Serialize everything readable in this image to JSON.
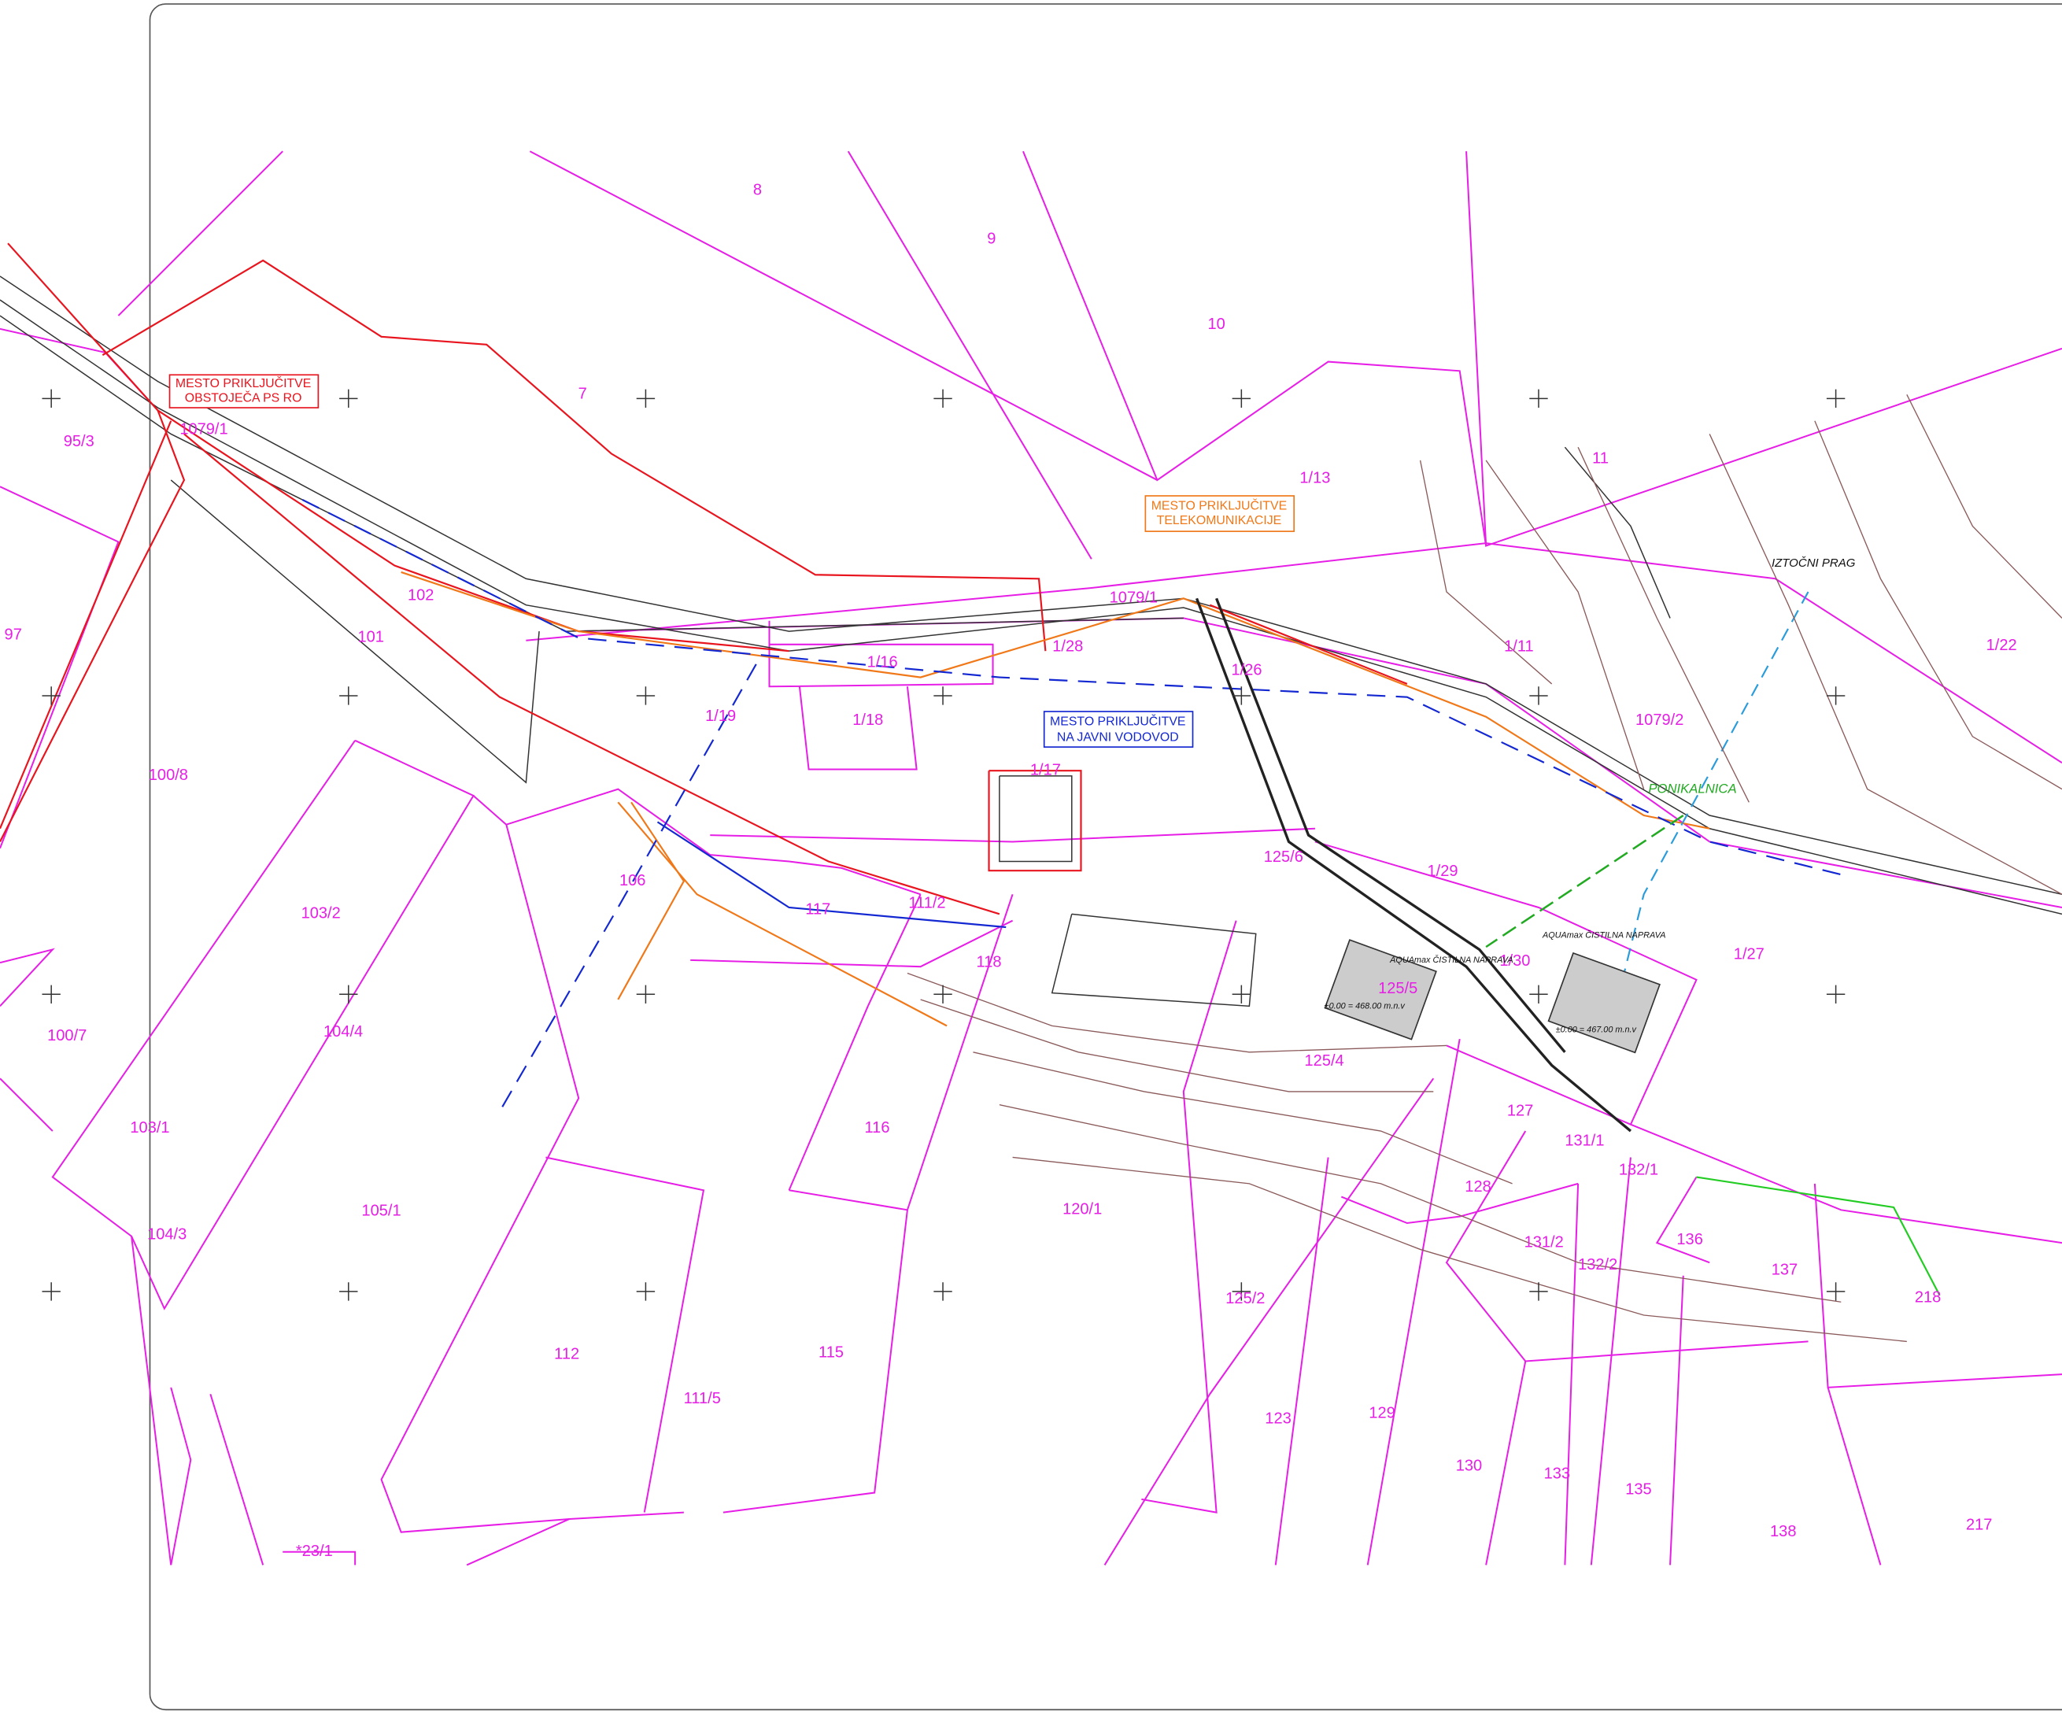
{
  "parcels": [
    "8",
    "9",
    "10",
    "7",
    "1/13",
    "11",
    "95/3",
    "1079/1",
    "97",
    "102",
    "101",
    "1079/1",
    "1/28",
    "1/16",
    "1/26",
    "1/11",
    "1/22",
    "1/19",
    "1/18",
    "1079/2",
    "100/8",
    "1/17",
    "106",
    "1/29",
    "125/6",
    "117",
    "111/2",
    "103/2",
    "118",
    "1/30",
    "125/5",
    "1/27",
    "100/7",
    "104/4",
    "125/4",
    "127",
    "116",
    "103/1",
    "131/1",
    "132/1",
    "128",
    "105/1",
    "120/1",
    "104/3",
    "136",
    "131/2",
    "132/2",
    "137",
    "218",
    "125/2",
    "112",
    "115",
    "111/5",
    "123",
    "129",
    "130",
    "133",
    "135",
    "138",
    "217",
    "*23/1"
  ],
  "annotations": {
    "sewer_connection": [
      "MESTO PRIKLJUČITVE",
      "OBSTOJEČA PS RO"
    ],
    "telecom_connection": [
      "MESTO PRIKLJUČITVE",
      "TELEKOMUNIKACIJE"
    ],
    "water_connection": [
      "MESTO PRIKLJUČITVE",
      "NA JAVNI VODOVOD"
    ],
    "sinkhole": "PONIKALNICA",
    "outlet_sill": "IZTOČNI PRAG",
    "treatment_plant_1": "AQUAmax ČISTILNA NAPRAVA",
    "treatment_plant_2": "AQUAmax ČISTILNA NAPRAVA",
    "level_1": "±0.00 = 468.00 m.n.v",
    "level_2": "±0.00 = 467.00 m.n.v"
  }
}
